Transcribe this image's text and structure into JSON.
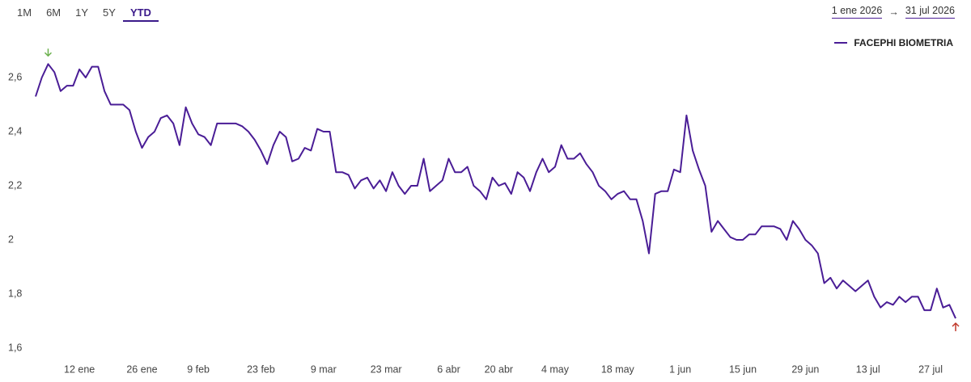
{
  "range_buttons": [
    {
      "label": "1M",
      "active": false
    },
    {
      "label": "6M",
      "active": false
    },
    {
      "label": "1Y",
      "active": false
    },
    {
      "label": "5Y",
      "active": false
    },
    {
      "label": "YTD",
      "active": true
    }
  ],
  "date_range": {
    "from": "1 ene 2026",
    "to": "31 jul 2026"
  },
  "chart_data": {
    "type": "line",
    "categories": [
      null,
      null,
      null,
      null,
      null,
      null,
      null,
      "12 ene",
      null,
      null,
      null,
      null,
      null,
      null,
      null,
      null,
      null,
      "26 ene",
      null,
      null,
      null,
      null,
      null,
      null,
      null,
      null,
      "9 feb",
      null,
      null,
      null,
      null,
      null,
      null,
      null,
      null,
      null,
      "23 feb",
      null,
      null,
      null,
      null,
      null,
      null,
      null,
      null,
      null,
      "9 mar",
      null,
      null,
      null,
      null,
      null,
      null,
      null,
      null,
      null,
      "23 mar",
      null,
      null,
      null,
      null,
      null,
      null,
      null,
      null,
      null,
      "6 abr",
      null,
      null,
      null,
      null,
      null,
      null,
      null,
      "20 abr",
      null,
      null,
      null,
      null,
      null,
      null,
      null,
      null,
      "4 may",
      null,
      null,
      null,
      null,
      null,
      null,
      null,
      null,
      null,
      "18 may",
      null,
      null,
      null,
      null,
      null,
      null,
      null,
      null,
      null,
      "1 jun",
      null,
      null,
      null,
      null,
      null,
      null,
      null,
      null,
      null,
      "15 jun",
      null,
      null,
      null,
      null,
      null,
      null,
      null,
      null,
      null,
      "29 jun",
      null,
      null,
      null,
      null,
      null,
      null,
      null,
      null,
      null,
      "13 jul",
      null,
      null,
      null,
      null,
      null,
      null,
      null,
      null,
      null,
      "27 jul",
      null,
      null,
      null,
      null
    ],
    "series": [
      {
        "name": "FACEPHI BIOMETRIA",
        "color": "#4a1d96",
        "values": [
          2.53,
          2.6,
          2.65,
          2.62,
          2.55,
          2.57,
          2.57,
          2.63,
          2.6,
          2.64,
          2.64,
          2.55,
          2.5,
          2.5,
          2.5,
          2.48,
          2.4,
          2.34,
          2.38,
          2.4,
          2.45,
          2.46,
          2.43,
          2.35,
          2.49,
          2.43,
          2.39,
          2.38,
          2.35,
          2.43,
          2.43,
          2.43,
          2.43,
          2.42,
          2.4,
          2.37,
          2.33,
          2.28,
          2.35,
          2.4,
          2.38,
          2.29,
          2.3,
          2.34,
          2.33,
          2.41,
          2.4,
          2.4,
          2.25,
          2.25,
          2.24,
          2.19,
          2.22,
          2.23,
          2.19,
          2.22,
          2.18,
          2.25,
          2.2,
          2.17,
          2.2,
          2.2,
          2.3,
          2.18,
          2.2,
          2.22,
          2.3,
          2.25,
          2.25,
          2.27,
          2.2,
          2.18,
          2.15,
          2.23,
          2.2,
          2.21,
          2.17,
          2.25,
          2.23,
          2.18,
          2.25,
          2.3,
          2.25,
          2.27,
          2.35,
          2.3,
          2.3,
          2.32,
          2.28,
          2.25,
          2.2,
          2.18,
          2.15,
          2.17,
          2.18,
          2.15,
          2.15,
          2.07,
          1.95,
          2.17,
          2.18,
          2.18,
          2.26,
          2.25,
          2.46,
          2.33,
          2.26,
          2.2,
          2.03,
          2.07,
          2.04,
          2.01,
          2.0,
          2.0,
          2.02,
          2.02,
          2.05,
          2.05,
          2.05,
          2.04,
          2.0,
          2.07,
          2.04,
          2.0,
          1.98,
          1.95,
          1.84,
          1.86,
          1.82,
          1.85,
          1.83,
          1.81,
          1.83,
          1.85,
          1.79,
          1.75,
          1.77,
          1.76,
          1.79,
          1.77,
          1.79,
          1.79,
          1.74,
          1.74,
          1.82,
          1.75,
          1.76,
          1.71
        ]
      }
    ],
    "ylim": [
      1.6,
      2.8
    ],
    "yticks": [
      {
        "value": 1.6,
        "label": "1,6"
      },
      {
        "value": 1.8,
        "label": "1,8"
      },
      2,
      {
        "value": 2.2,
        "label": "2,2"
      },
      {
        "value": 2.4,
        "label": "2,4"
      },
      {
        "value": 2.6,
        "label": "2,6"
      }
    ],
    "grid": false,
    "legend": "top-right",
    "max_marker_color": "#6ab04c",
    "last_marker_color": "#c0392b"
  }
}
